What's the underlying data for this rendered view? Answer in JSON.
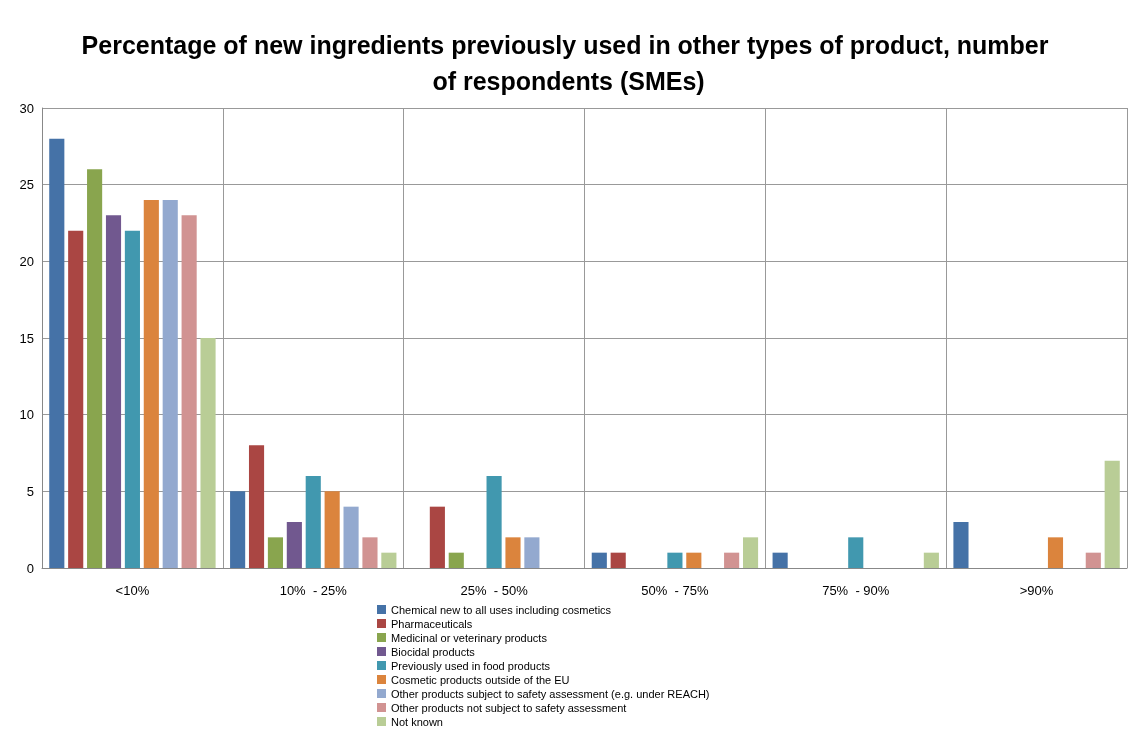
{
  "chart_data": {
    "type": "bar",
    "title": "Percentage of new ingredients previously used in other types of product, number of respondents (SMEs)",
    "categories": [
      "<10%",
      "10%  - 25%",
      "25%  - 50%",
      "50%  - 75%",
      "75%  - 90%",
      ">90%"
    ],
    "series": [
      {
        "name": "Chemical new to all uses including cosmetics",
        "color": "#4572a7",
        "values": [
          28,
          5,
          0,
          1,
          1,
          3
        ]
      },
      {
        "name": "Pharmaceuticals",
        "color": "#aa4643",
        "values": [
          22,
          8,
          4,
          1,
          0,
          0
        ]
      },
      {
        "name": "Medicinal or veterinary products",
        "color": "#89a54e",
        "values": [
          26,
          2,
          1,
          0,
          0,
          0
        ]
      },
      {
        "name": "Biocidal products",
        "color": "#71588f",
        "values": [
          23,
          3,
          0,
          0,
          0,
          0
        ]
      },
      {
        "name": "Previously used in food products",
        "color": "#4198af",
        "values": [
          22,
          6,
          6,
          1,
          2,
          0
        ]
      },
      {
        "name": "Cosmetic products outside of the EU",
        "color": "#db843d",
        "values": [
          24,
          5,
          2,
          1,
          0,
          2
        ]
      },
      {
        "name": "Other products subject to safety assessment (e.g. under REACH)",
        "color": "#93a9cf",
        "values": [
          24,
          4,
          2,
          0,
          0,
          0
        ]
      },
      {
        "name": "Other products not subject to safety assessment",
        "color": "#d19392",
        "values": [
          23,
          2,
          0,
          1,
          0,
          1
        ]
      },
      {
        "name": "Not known",
        "color": "#b9cd96",
        "values": [
          15,
          1,
          0,
          2,
          1,
          7
        ]
      }
    ],
    "ylim": [
      0,
      30
    ],
    "yticks": [
      0,
      5,
      10,
      15,
      20,
      25,
      30
    ],
    "grid": true,
    "legend": "bottom"
  }
}
